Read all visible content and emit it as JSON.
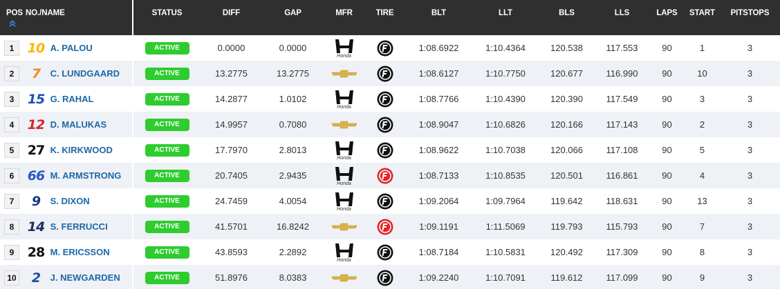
{
  "columns": {
    "pos": "POS",
    "name": "NO./NAME",
    "status": "STATUS",
    "diff": "DIFF",
    "gap": "GAP",
    "mfr": "MFR",
    "tire": "TIRE",
    "blt": "BLT",
    "llt": "LLT",
    "bls": "BLS",
    "lls": "LLS",
    "laps": "LAPS",
    "start": "START",
    "pitstops": "PITSTOPS"
  },
  "sort_icon": "double-chevron-up-icon",
  "mfr_labels": {
    "honda": "Honda"
  },
  "colors": {
    "header_bg": "#2f2f2f",
    "status_green": "#2ecc2e",
    "driver_blue": "#1d68a7",
    "alt_row": "#eef1f6",
    "tire_primary": "#111111",
    "tire_alternate": "#e0262c"
  },
  "rows": [
    {
      "pos": "1",
      "number": "10",
      "number_color": "#f5b800",
      "name": "A. PALOU",
      "status": "ACTIVE",
      "diff": "0.0000",
      "gap": "0.0000",
      "mfr": "honda",
      "tire": "primary",
      "blt": "1:08.6922",
      "llt": "1:10.4364",
      "bls": "120.538",
      "lls": "117.553",
      "laps": "90",
      "start": "1",
      "pitstops": "3"
    },
    {
      "pos": "2",
      "number": "7",
      "number_color": "#f08a1c",
      "name": "C. LUNDGAARD",
      "status": "ACTIVE",
      "diff": "13.2775",
      "gap": "13.2775",
      "mfr": "chevrolet",
      "tire": "primary",
      "blt": "1:08.6127",
      "llt": "1:10.7750",
      "bls": "120.677",
      "lls": "116.990",
      "laps": "90",
      "start": "10",
      "pitstops": "3"
    },
    {
      "pos": "3",
      "number": "15",
      "number_color": "#1a4fb5",
      "name": "G. RAHAL",
      "status": "ACTIVE",
      "diff": "14.2877",
      "gap": "1.0102",
      "mfr": "honda",
      "tire": "primary",
      "blt": "1:08.7766",
      "llt": "1:10.4390",
      "bls": "120.390",
      "lls": "117.549",
      "laps": "90",
      "start": "3",
      "pitstops": "3"
    },
    {
      "pos": "4",
      "number": "12",
      "number_color": "#d2252b",
      "name": "D. MALUKAS",
      "status": "ACTIVE",
      "diff": "14.9957",
      "gap": "0.7080",
      "mfr": "chevrolet",
      "tire": "primary",
      "blt": "1:08.9047",
      "llt": "1:10.6826",
      "bls": "120.166",
      "lls": "117.143",
      "laps": "90",
      "start": "2",
      "pitstops": "3"
    },
    {
      "pos": "5",
      "number": "27",
      "number_color": "#111111",
      "name": "K. KIRKWOOD",
      "status": "ACTIVE",
      "diff": "17.7970",
      "gap": "2.8013",
      "mfr": "honda",
      "tire": "primary",
      "blt": "1:08.9622",
      "llt": "1:10.7038",
      "bls": "120.066",
      "lls": "117.108",
      "laps": "90",
      "start": "5",
      "pitstops": "3"
    },
    {
      "pos": "6",
      "number": "66",
      "number_color": "#2a56c4",
      "name": "M. ARMSTRONG",
      "status": "ACTIVE",
      "diff": "20.7405",
      "gap": "2.9435",
      "mfr": "honda",
      "tire": "alternate",
      "blt": "1:08.7133",
      "llt": "1:10.8535",
      "bls": "120.501",
      "lls": "116.861",
      "laps": "90",
      "start": "4",
      "pitstops": "3"
    },
    {
      "pos": "7",
      "number": "9",
      "number_color": "#163a78",
      "name": "S. DIXON",
      "status": "ACTIVE",
      "diff": "24.7459",
      "gap": "4.0054",
      "mfr": "honda",
      "tire": "primary",
      "blt": "1:09.2064",
      "llt": "1:09.7964",
      "bls": "119.642",
      "lls": "118.631",
      "laps": "90",
      "start": "13",
      "pitstops": "3"
    },
    {
      "pos": "8",
      "number": "14",
      "number_color": "#1f2e66",
      "name": "S. FERRUCCI",
      "status": "ACTIVE",
      "diff": "41.5701",
      "gap": "16.8242",
      "mfr": "chevrolet",
      "tire": "alternate",
      "blt": "1:09.1191",
      "llt": "1:11.5069",
      "bls": "119.793",
      "lls": "115.793",
      "laps": "90",
      "start": "7",
      "pitstops": "3"
    },
    {
      "pos": "9",
      "number": "28",
      "number_color": "#111111",
      "name": "M. ERICSSON",
      "status": "ACTIVE",
      "diff": "43.8593",
      "gap": "2.2892",
      "mfr": "honda",
      "tire": "primary",
      "blt": "1:08.7184",
      "llt": "1:10.5831",
      "bls": "120.492",
      "lls": "117.309",
      "laps": "90",
      "start": "8",
      "pitstops": "3"
    },
    {
      "pos": "10",
      "number": "2",
      "number_color": "#1b4f9c",
      "name": "J. NEWGARDEN",
      "status": "ACTIVE",
      "diff": "51.8976",
      "gap": "8.0383",
      "mfr": "chevrolet",
      "tire": "primary",
      "blt": "1:09.2240",
      "llt": "1:10.7091",
      "bls": "119.612",
      "lls": "117.099",
      "laps": "90",
      "start": "9",
      "pitstops": "3"
    }
  ]
}
